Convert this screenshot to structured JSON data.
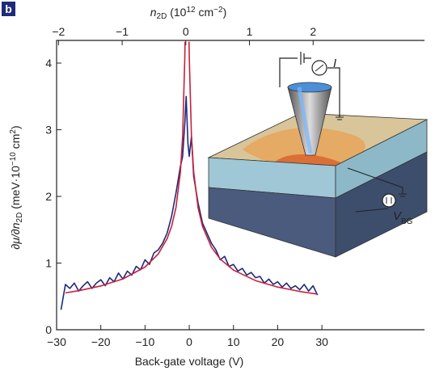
{
  "chart_data": {
    "type": "line",
    "panel_label": "b",
    "x_label": "Back-gate voltage (V)",
    "y_label": [
      "∂μ/∂",
      "n",
      "2D",
      " (meV·10",
      "−10",
      " cm",
      "2",
      ")"
    ],
    "x2_label": [
      "n",
      "2D",
      " (10",
      "12",
      " cm",
      "−2",
      ")"
    ],
    "xlim": [
      -30,
      53.2
    ],
    "ylim": [
      0,
      4.34
    ],
    "x2lim": [
      -2.03,
      3.75
    ],
    "xticks": [
      {
        "value": -30,
        "label": "−30"
      },
      {
        "value": -20,
        "label": "−20"
      },
      {
        "value": -10,
        "label": "−10"
      },
      0,
      10,
      20,
      30
    ],
    "yticks": [
      0,
      1,
      2,
      3,
      4
    ],
    "x2ticks": [
      {
        "value": -2,
        "label": "−2"
      },
      {
        "value": -1,
        "label": "−1"
      },
      0,
      1,
      2
    ],
    "series": [
      {
        "color": "#1f2a7a",
        "x": [
          -29,
          -28,
          -27,
          -26,
          -25,
          -24,
          -23,
          -22,
          -21,
          -20,
          -19,
          -18,
          -17,
          -16,
          -15,
          -14,
          -13,
          -12,
          -11,
          -10,
          -9,
          -8,
          -7,
          -6,
          -5,
          -4,
          -3,
          -2,
          -1.5,
          -1,
          -0.7,
          -0.3,
          0,
          0.5,
          1,
          2,
          3,
          4,
          5,
          6,
          7,
          8,
          9,
          10,
          11,
          12,
          13,
          14,
          15,
          16,
          17,
          18,
          19,
          20,
          21,
          22,
          23,
          24,
          25,
          26,
          27,
          28,
          29
        ],
        "values": [
          0.3,
          0.68,
          0.62,
          0.7,
          0.58,
          0.66,
          0.72,
          0.62,
          0.7,
          0.75,
          0.66,
          0.78,
          0.72,
          0.85,
          0.76,
          0.88,
          0.82,
          0.95,
          0.9,
          1.05,
          0.98,
          1.15,
          1.2,
          1.3,
          1.45,
          1.7,
          2.05,
          2.45,
          2.6,
          3.1,
          3.5,
          2.8,
          2.6,
          2.9,
          2.3,
          1.9,
          1.6,
          1.45,
          1.3,
          1.2,
          1.05,
          1.1,
          0.95,
          0.98,
          0.88,
          0.92,
          0.82,
          0.86,
          0.78,
          0.8,
          0.7,
          0.76,
          0.68,
          0.72,
          0.64,
          0.7,
          0.62,
          0.66,
          0.6,
          0.68,
          0.58,
          0.66,
          0.52
        ]
      },
      {
        "color": "#c8203c",
        "x": [
          -28,
          -25,
          -20,
          -15,
          -10,
          -7,
          -5,
          -4,
          -3,
          -2,
          -1.5,
          -1,
          -0.95,
          -0.5,
          -0.05,
          0,
          0.5,
          1,
          2,
          3,
          5,
          7,
          10,
          15,
          20,
          25,
          29
        ],
        "values": [
          0.553,
          0.586,
          0.657,
          0.762,
          0.941,
          1.137,
          1.367,
          1.55,
          1.834,
          2.368,
          2.9,
          4.1,
          4.32,
          null,
          4.32,
          4.1,
          2.9,
          2.37,
          1.83,
          1.55,
          1.24,
          1.06,
          0.895,
          0.737,
          0.64,
          0.574,
          0.534
        ]
      }
    ],
    "inset_labels": {
      "current": "I",
      "gate": [
        "V",
        "BG"
      ]
    }
  }
}
